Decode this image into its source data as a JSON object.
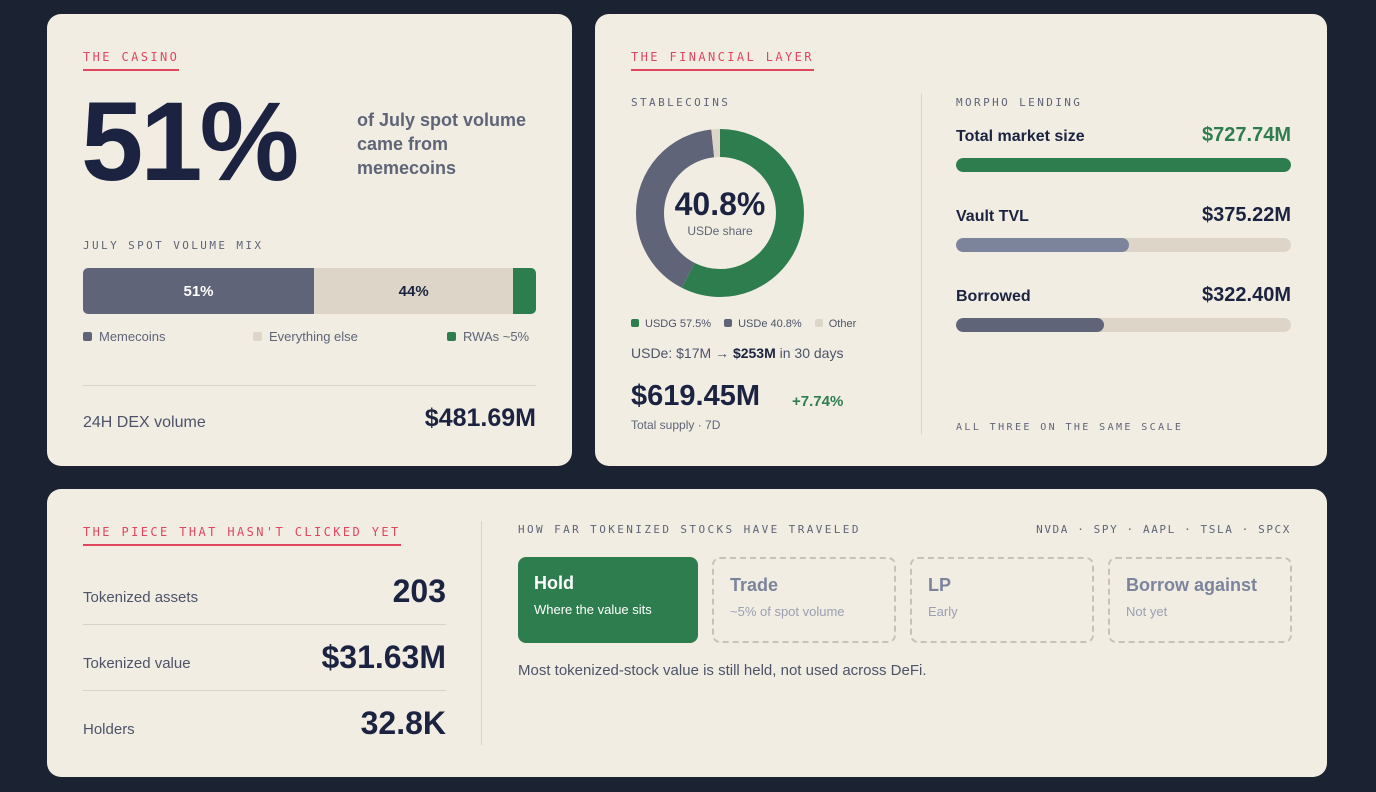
{
  "casino": {
    "section_label": "THE CASINO",
    "big_percent": "51%",
    "big_desc_line1": "of July spot volume",
    "big_desc_line2": "came from",
    "big_desc_line3": "memecoins",
    "mix_label": "JULY SPOT VOLUME MIX",
    "mix": [
      {
        "label": "51%",
        "fraction": 0.51,
        "color": "#5f6478"
      },
      {
        "label": "44%",
        "fraction": 0.44,
        "color": "#ddd6c8"
      },
      {
        "label": "",
        "fraction": 0.05,
        "color": "#2e7d4f"
      }
    ],
    "legend": [
      {
        "label": "Memecoins",
        "color": "#5f6478"
      },
      {
        "label": "Everything else",
        "color": "#ddd6c8"
      },
      {
        "label": "RWAs ~5%",
        "color": "#2e7d4f"
      }
    ],
    "dex_label": "24H DEX volume",
    "dex_value": "$481.69M"
  },
  "financial": {
    "section_label": "THE FINANCIAL LAYER",
    "stable_label": "STABLECOINS",
    "donut": {
      "center_value": "40.8%",
      "center_caption": "USDe share",
      "slices": [
        {
          "name": "USDG",
          "share": 57.5,
          "color": "#2e7d4f"
        },
        {
          "name": "USDe",
          "share": 40.8,
          "color": "#5f6478"
        },
        {
          "name": "Other",
          "share": 1.7,
          "color": "#ddd6c8"
        }
      ]
    },
    "legend": [
      {
        "label": "USDG 57.5%",
        "color": "#2e7d4f"
      },
      {
        "label": "USDe 40.8%",
        "color": "#5f6478"
      },
      {
        "label": "Other",
        "color": "#ddd6c8"
      }
    ],
    "growth_prefix": "USDe: $17M →",
    "growth_value": "$253M",
    "growth_suffix": "in 30 days",
    "supply_value": "$619.45M",
    "supply_change": "+7.74%",
    "supply_caption": "Total supply · 7D",
    "lending_label": "MORPHO LENDING",
    "lending": [
      {
        "label": "Total market size",
        "value": "$727.74M",
        "fraction": 1.0,
        "color": "#2e7d4f",
        "value_color": "#2e7d4f"
      },
      {
        "label": "Vault TVL",
        "value": "$375.22M",
        "fraction": 0.5156,
        "color": "#7c849c",
        "value_color": "#1b2340"
      },
      {
        "label": "Borrowed",
        "value": "$322.40M",
        "fraction": 0.443,
        "color": "#5f6478",
        "value_color": "#1b2340"
      }
    ],
    "scale_note": "ALL THREE ON THE SAME SCALE"
  },
  "tokenized": {
    "section_label": "THE PIECE THAT HASN'T CLICKED YET",
    "stats": [
      {
        "label": "Tokenized assets",
        "value": "203"
      },
      {
        "label": "Tokenized value",
        "value": "$31.63M"
      },
      {
        "label": "Holders",
        "value": "32.8K"
      }
    ],
    "journey_label": "HOW FAR TOKENIZED STOCKS HAVE TRAVELED",
    "tickers": "NVDA · SPY · AAPL · TSLA · SPCX",
    "steps": [
      {
        "title": "Hold",
        "sub": "Where the value sits"
      },
      {
        "title": "Trade",
        "sub": "~5% of spot volume"
      },
      {
        "title": "LP",
        "sub": "Early"
      },
      {
        "title": "Borrow against",
        "sub": "Not yet"
      }
    ],
    "footnote": "Most tokenized-stock value is still held, not used across DeFi."
  }
}
